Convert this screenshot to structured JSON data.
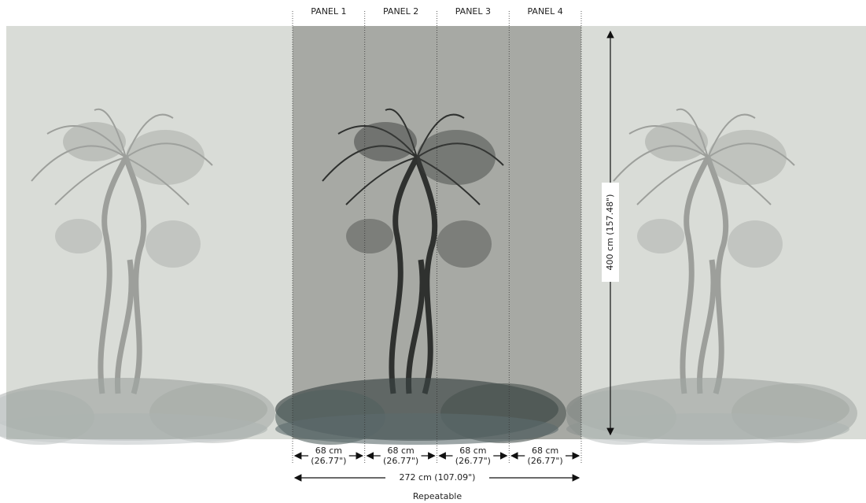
{
  "panels": [
    {
      "label": "PANEL 1",
      "width_cm": "68 cm",
      "width_in": "(26.77\")"
    },
    {
      "label": "PANEL 2",
      "width_cm": "68 cm",
      "width_in": "(26.77\")"
    },
    {
      "label": "PANEL 3",
      "width_cm": "68 cm",
      "width_in": "(26.77\")"
    },
    {
      "label": "PANEL 4",
      "width_cm": "68 cm",
      "width_in": "(26.77\")"
    }
  ],
  "total_width": "272 cm (107.09\")",
  "height": "400 cm (157.48\")",
  "note": "Repeatable"
}
